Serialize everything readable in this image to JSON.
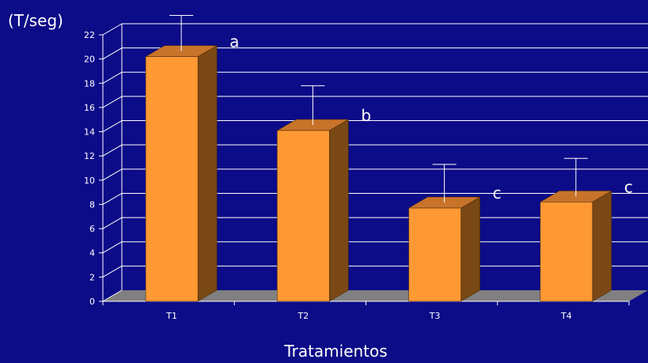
{
  "chart_data": {
    "type": "bar",
    "categories": [
      "T1",
      "T2",
      "T3",
      "T4"
    ],
    "values": [
      20.2,
      14.1,
      7.7,
      8.2
    ],
    "error_upper": [
      23.6,
      17.8,
      11.3,
      11.8
    ],
    "significance_letters": [
      "a",
      "b",
      "c",
      "c"
    ],
    "ylabel": "(T/seg)",
    "xlabel": "Tratamientos",
    "ylim": [
      0,
      22
    ],
    "yticks": [
      0,
      2,
      4,
      6,
      8,
      10,
      12,
      14,
      16,
      18,
      20,
      22
    ],
    "grid": true,
    "style": "3d-column"
  },
  "colors": {
    "background": "#0c0b88",
    "bar_front": "#ff9933",
    "bar_side": "#7a4814",
    "bar_top": "#c8732a",
    "floor": "#808080",
    "grid": "#ffffff",
    "text": "#ffffff"
  }
}
